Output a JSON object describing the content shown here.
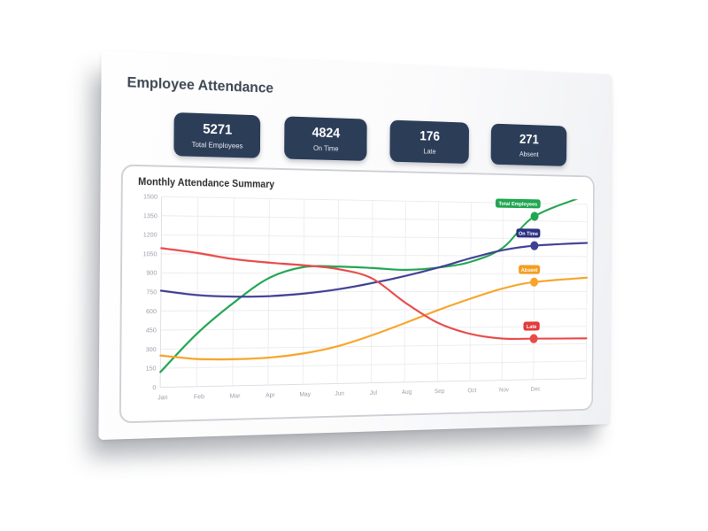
{
  "page": {
    "title": "Employee Attendance"
  },
  "stats": [
    {
      "value": "5271",
      "label": "Total Employees"
    },
    {
      "value": "4824",
      "label": "On Time"
    },
    {
      "value": "176",
      "label": "Late"
    },
    {
      "value": "271",
      "label": "Absent"
    }
  ],
  "chart_panel": {
    "title": "Monthly Attendance Summary"
  },
  "colors": {
    "stat_card_bg": "#2c3d58",
    "title_text": "#3d4854",
    "grid": "#ececf0",
    "tick_text": "#9ba1aa"
  },
  "chart_data": {
    "type": "line",
    "title": "Monthly Attendance Summary",
    "categories": [
      "Jan",
      "Feb",
      "Mar",
      "Apr",
      "May",
      "Jun",
      "Jul",
      "Aug",
      "Sep",
      "Oct",
      "Nov",
      "Dec"
    ],
    "ylim": [
      0,
      1500
    ],
    "ytick_step": 150,
    "grid": true,
    "legend_position": "end-of-line-badges",
    "series": [
      {
        "name": "Total Employees",
        "color": "#21a551",
        "badge_color": "#21a551",
        "values": [
          120,
          420,
          660,
          860,
          950,
          955,
          945,
          930,
          950,
          1000,
          1120,
          1390
        ]
      },
      {
        "name": "On Time",
        "color": "#3f3f94",
        "badge_color": "#2d3080",
        "values": [
          760,
          725,
          712,
          715,
          735,
          770,
          820,
          880,
          950,
          1030,
          1100,
          1140
        ]
      },
      {
        "name": "Absent",
        "color": "#f7a428",
        "badge_color": "#f59d1e",
        "values": [
          250,
          218,
          212,
          220,
          250,
          305,
          390,
          490,
          595,
          690,
          775,
          830
        ]
      },
      {
        "name": "Late",
        "color": "#e84a4a",
        "badge_color": "#e23b3b",
        "values": [
          1095,
          1058,
          1012,
          985,
          965,
          935,
          860,
          660,
          490,
          395,
          352,
          348
        ]
      }
    ]
  }
}
